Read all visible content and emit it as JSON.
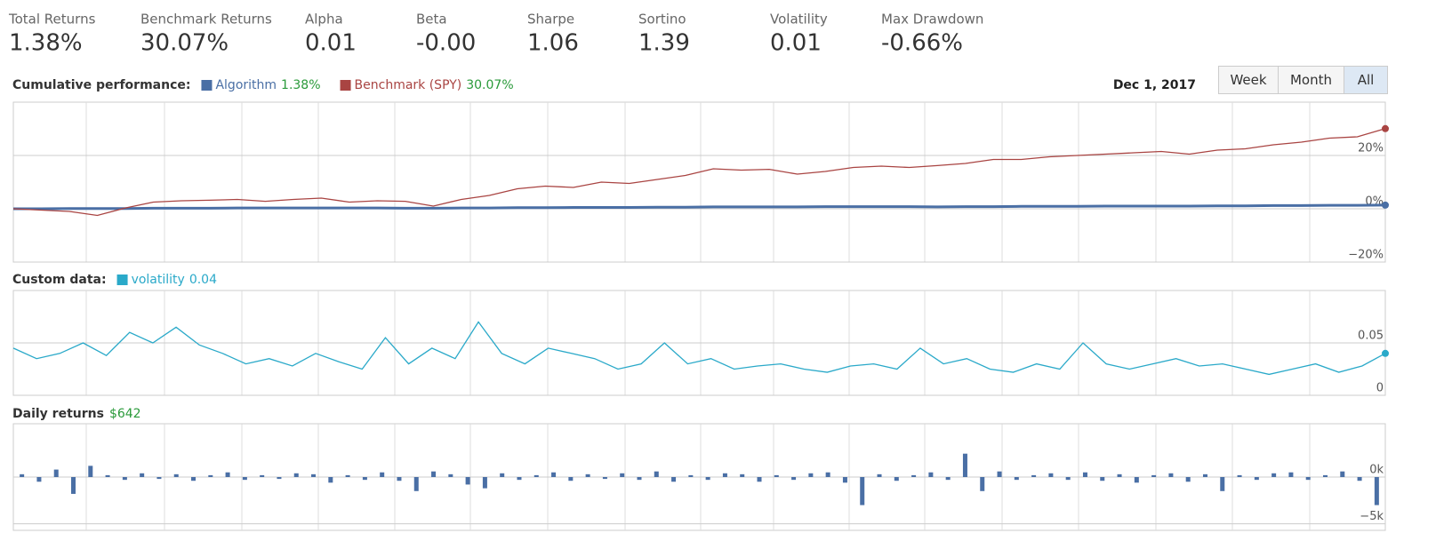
{
  "stats": [
    {
      "label": "Total Returns",
      "value": "1.38%"
    },
    {
      "label": "Benchmark Returns",
      "value": "30.07%"
    },
    {
      "label": "Alpha",
      "value": "0.01"
    },
    {
      "label": "Beta",
      "value": "-0.00"
    },
    {
      "label": "Sharpe",
      "value": "1.06"
    },
    {
      "label": "Sortino",
      "value": "1.39"
    },
    {
      "label": "Volatility",
      "value": "0.01"
    },
    {
      "label": "Max Drawdown",
      "value": "-0.66%"
    }
  ],
  "date": "Dec 1, 2017",
  "buttons": [
    "Week",
    "Month",
    "All"
  ],
  "active_button": 2,
  "chart_data": [
    {
      "type": "line",
      "label": "Cumulative performance:",
      "legend_value_color": "#2a9a3a",
      "ylim": [
        -20,
        40
      ],
      "yticks": [
        {
          "value": -20,
          "label": "−20%"
        },
        {
          "value": 0,
          "label": "0%"
        },
        {
          "value": 20,
          "label": "20%"
        }
      ],
      "grid": true,
      "series": [
        {
          "name": "Algorithm",
          "color": "#4a6fa5",
          "legend_value": "1.38%",
          "values": [
            0,
            0,
            0.1,
            0.1,
            0.1,
            0.2,
            0.2,
            0.2,
            0.3,
            0.3,
            0.3,
            0.3,
            0.3,
            0.3,
            0.2,
            0.2,
            0.3,
            0.3,
            0.4,
            0.4,
            0.5,
            0.5,
            0.5,
            0.6,
            0.6,
            0.7,
            0.7,
            0.7,
            0.7,
            0.8,
            0.8,
            0.8,
            0.8,
            0.7,
            0.8,
            0.8,
            0.9,
            0.9,
            0.9,
            1,
            1,
            1,
            1,
            1.1,
            1.1,
            1.2,
            1.2,
            1.3,
            1.3,
            1.38
          ]
        },
        {
          "name": "Benchmark (SPY)",
          "color": "#a94442",
          "legend_value": "30.07%",
          "values": [
            0,
            -0.5,
            -1,
            -2.5,
            0.3,
            2.5,
            3,
            3.2,
            3.5,
            2.8,
            3.5,
            4,
            2.5,
            3,
            2.8,
            1,
            3.5,
            5,
            7.5,
            8.5,
            8,
            10,
            9.5,
            11,
            12.5,
            15,
            14.5,
            14.8,
            13,
            14,
            15.5,
            16,
            15.5,
            16.2,
            17,
            18.5,
            18.5,
            19.5,
            20,
            20.5,
            21,
            21.5,
            20.5,
            22,
            22.5,
            24,
            25,
            26.5,
            27,
            30.07
          ]
        }
      ]
    },
    {
      "type": "line",
      "label": "Custom data:",
      "legend_value_color": "#2aa9c9",
      "ylim": [
        0,
        0.1
      ],
      "yticks": [
        0,
        0.05
      ],
      "grid": true,
      "series": [
        {
          "name": "volatility",
          "color": "#2aa9c9",
          "legend_value": "0.04",
          "values": [
            0.045,
            0.035,
            0.04,
            0.05,
            0.038,
            0.06,
            0.05,
            0.065,
            0.048,
            0.04,
            0.03,
            0.035,
            0.028,
            0.04,
            0.032,
            0.025,
            0.055,
            0.03,
            0.045,
            0.035,
            0.07,
            0.04,
            0.03,
            0.045,
            0.04,
            0.035,
            0.025,
            0.03,
            0.05,
            0.03,
            0.035,
            0.025,
            0.028,
            0.03,
            0.025,
            0.022,
            0.028,
            0.03,
            0.025,
            0.045,
            0.03,
            0.035,
            0.025,
            0.022,
            0.03,
            0.025,
            0.05,
            0.03,
            0.025,
            0.03,
            0.035,
            0.028,
            0.03,
            0.025,
            0.02,
            0.025,
            0.03,
            0.022,
            0.028,
            0.04
          ]
        }
      ]
    },
    {
      "type": "bar",
      "label": "Daily returns",
      "legend_value": "$642",
      "legend_value_color": "#2a9a3a",
      "color": "#4a6fa5",
      "ylim": [
        -5700,
        5700
      ],
      "yticks": [
        {
          "value": -5000,
          "label": "−5k"
        },
        {
          "value": 0,
          "label": "0k"
        }
      ],
      "grid": true,
      "values": [
        300,
        -500,
        800,
        -1800,
        1200,
        200,
        -300,
        400,
        -200,
        300,
        -400,
        200,
        500,
        -300,
        200,
        -200,
        400,
        300,
        -600,
        200,
        -300,
        500,
        -400,
        -1500,
        600,
        300,
        -800,
        -1200,
        400,
        -300,
        200,
        500,
        -400,
        300,
        -200,
        400,
        -300,
        600,
        -500,
        200,
        -300,
        400,
        300,
        -500,
        200,
        -300,
        400,
        500,
        -600,
        -3000,
        300,
        -400,
        200,
        500,
        -300,
        2500,
        -1500,
        600,
        -300,
        200,
        400,
        -300,
        500,
        -400,
        300,
        -600,
        200,
        400,
        -500,
        300,
        -1500,
        200,
        -300,
        400,
        500,
        -300,
        200,
        600,
        -400,
        -3000
      ]
    }
  ]
}
